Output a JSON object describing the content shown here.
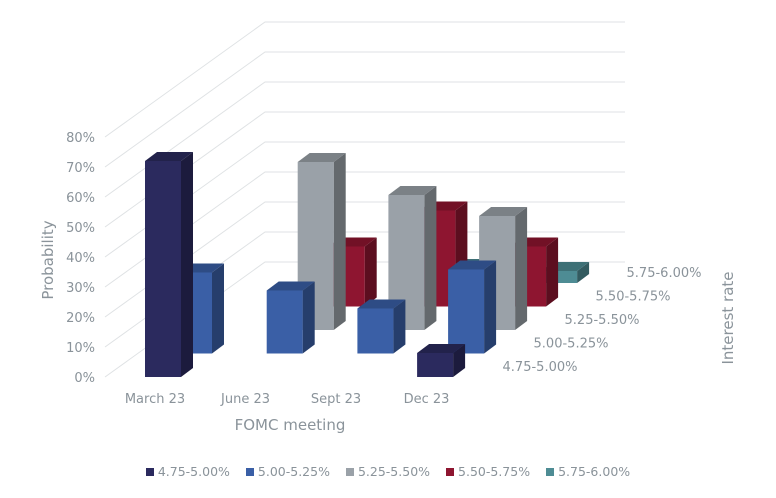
{
  "chart_data": {
    "type": "bar3d",
    "xlabel": "FOMC meeting",
    "ylabel": "Probability",
    "zlabel": "Interest rate",
    "categories": [
      "March 23",
      "June 23",
      "Sept 23",
      "Dec 23"
    ],
    "yticks": [
      "0%",
      "10%",
      "20%",
      "30%",
      "40%",
      "50%",
      "60%",
      "70%",
      "80%"
    ],
    "ylim": [
      0,
      80
    ],
    "grid": true,
    "legend_position": "bottom",
    "series": [
      {
        "name": "4.75-5.00%",
        "color": "#2b2a5e",
        "values": [
          72,
          0,
          0,
          8
        ]
      },
      {
        "name": "5.00-5.25%",
        "color": "#3a5fa6",
        "values": [
          27,
          21,
          15,
          28
        ]
      },
      {
        "name": "5.25-5.50%",
        "color": "#9aa1a8",
        "values": [
          0,
          56,
          45,
          38
        ]
      },
      {
        "name": "5.50-5.75%",
        "color": "#8e1530",
        "values": [
          0,
          20,
          32,
          20
        ]
      },
      {
        "name": "5.75-6.00%",
        "color": "#4e8c94",
        "values": [
          0,
          0,
          5,
          4
        ]
      }
    ]
  }
}
